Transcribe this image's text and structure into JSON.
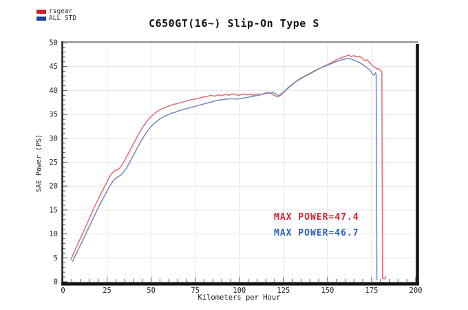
{
  "chart_data": {
    "type": "line",
    "title": "C650GT(16~) Slip-On Type S",
    "xlabel": "Kilometers per Hour",
    "ylabel": "SAE Power (PS)",
    "xlim": [
      0,
      200
    ],
    "ylim": [
      0,
      50
    ],
    "x_major_ticks": [
      0,
      25,
      50,
      75,
      100,
      125,
      150,
      175,
      200
    ],
    "y_major_ticks": [
      0,
      5,
      10,
      15,
      20,
      25,
      30,
      35,
      40,
      45,
      50
    ],
    "x_minor_step": 5,
    "y_minor_step": 1,
    "grid": true,
    "grid_color": "#e4e4e4",
    "legend_position": "top-left",
    "series": [
      {
        "name": "rsgear",
        "legend_color": "#ce1f2c",
        "line_color": "#e06b76",
        "max_power": 47.4,
        "points": [
          [
            4.5,
            4.6
          ],
          [
            6,
            6.0
          ],
          [
            8,
            7.6
          ],
          [
            10,
            9.2
          ],
          [
            12,
            10.8
          ],
          [
            14,
            12.5
          ],
          [
            16,
            14.1
          ],
          [
            18,
            15.8
          ],
          [
            20,
            17.3
          ],
          [
            22,
            18.8
          ],
          [
            24,
            20.2
          ],
          [
            26,
            21.7
          ],
          [
            27.5,
            22.6
          ],
          [
            29,
            23.2
          ],
          [
            30.5,
            23.4
          ],
          [
            32,
            23.7
          ],
          [
            33.5,
            24.5
          ],
          [
            35,
            25.4
          ],
          [
            37,
            26.8
          ],
          [
            39,
            28.2
          ],
          [
            41,
            29.6
          ],
          [
            43,
            31.0
          ],
          [
            45,
            32.2
          ],
          [
            47,
            33.3
          ],
          [
            49,
            34.2
          ],
          [
            51,
            34.9
          ],
          [
            53,
            35.5
          ],
          [
            55,
            36.0
          ],
          [
            57,
            36.3
          ],
          [
            59,
            36.6
          ],
          [
            61,
            36.9
          ],
          [
            63,
            37.1
          ],
          [
            65,
            37.3
          ],
          [
            67,
            37.5
          ],
          [
            70,
            37.8
          ],
          [
            73,
            38.1
          ],
          [
            76,
            38.3
          ],
          [
            79,
            38.6
          ],
          [
            82,
            38.8
          ],
          [
            84,
            39.0
          ],
          [
            86,
            38.8
          ],
          [
            88,
            39.1
          ],
          [
            90,
            38.9
          ],
          [
            92,
            39.2
          ],
          [
            94,
            39.0
          ],
          [
            96,
            39.3
          ],
          [
            98,
            39.1
          ],
          [
            100,
            39.0
          ],
          [
            102,
            39.3
          ],
          [
            104,
            39.1
          ],
          [
            106,
            39.2
          ],
          [
            108,
            39.0
          ],
          [
            110,
            39.3
          ],
          [
            112,
            39.1
          ],
          [
            114,
            39.4
          ],
          [
            116,
            39.6
          ],
          [
            118,
            39.4
          ],
          [
            120,
            38.9
          ],
          [
            122,
            38.7
          ],
          [
            124,
            39.2
          ],
          [
            126,
            39.9
          ],
          [
            128,
            40.6
          ],
          [
            130,
            41.2
          ],
          [
            132,
            41.8
          ],
          [
            134,
            42.3
          ],
          [
            136,
            42.7
          ],
          [
            138,
            43.1
          ],
          [
            140,
            43.5
          ],
          [
            142,
            43.9
          ],
          [
            144,
            44.3
          ],
          [
            146,
            44.7
          ],
          [
            148,
            45.1
          ],
          [
            150,
            45.4
          ],
          [
            152,
            45.8
          ],
          [
            154,
            46.2
          ],
          [
            156,
            46.6
          ],
          [
            158,
            46.9
          ],
          [
            160,
            47.1
          ],
          [
            162,
            47.4
          ],
          [
            163.5,
            47.1
          ],
          [
            165,
            47.3
          ],
          [
            166.5,
            47.0
          ],
          [
            168,
            47.2
          ],
          [
            169.5,
            46.8
          ],
          [
            171,
            46.3
          ],
          [
            172.5,
            46.4
          ],
          [
            174,
            45.8
          ],
          [
            175.5,
            45.2
          ],
          [
            177,
            44.8
          ],
          [
            178,
            44.5
          ],
          [
            179,
            44.6
          ],
          [
            180,
            44.2
          ],
          [
            180.8,
            43.9
          ],
          [
            181.2,
            0.7
          ],
          [
            182.8,
            0.6
          ],
          [
            183,
            1.1
          ]
        ]
      },
      {
        "name": "ALL STD",
        "legend_color": "#1e3f9d",
        "line_color": "#7289bd",
        "max_power": 46.7,
        "points": [
          [
            5.5,
            4.3
          ],
          [
            7,
            5.5
          ],
          [
            9,
            7.0
          ],
          [
            11,
            8.5
          ],
          [
            13,
            10.1
          ],
          [
            15,
            11.6
          ],
          [
            17,
            13.2
          ],
          [
            19,
            14.7
          ],
          [
            21,
            16.2
          ],
          [
            23,
            17.6
          ],
          [
            25,
            19.0
          ],
          [
            27,
            20.3
          ],
          [
            28.5,
            21.1
          ],
          [
            30,
            21.7
          ],
          [
            31.5,
            22.0
          ],
          [
            33,
            22.4
          ],
          [
            34.5,
            23.0
          ],
          [
            36,
            23.8
          ],
          [
            38,
            25.1
          ],
          [
            40,
            26.5
          ],
          [
            42,
            27.9
          ],
          [
            44,
            29.3
          ],
          [
            46,
            30.5
          ],
          [
            48,
            31.6
          ],
          [
            50,
            32.5
          ],
          [
            52,
            33.2
          ],
          [
            54,
            33.8
          ],
          [
            56,
            34.3
          ],
          [
            58,
            34.7
          ],
          [
            60,
            35.0
          ],
          [
            62,
            35.3
          ],
          [
            64,
            35.5
          ],
          [
            66,
            35.8
          ],
          [
            69,
            36.1
          ],
          [
            72,
            36.4
          ],
          [
            75,
            36.7
          ],
          [
            78,
            37.0
          ],
          [
            81,
            37.3
          ],
          [
            84,
            37.6
          ],
          [
            87,
            37.9
          ],
          [
            90,
            38.1
          ],
          [
            93,
            38.2
          ],
          [
            96,
            38.3
          ],
          [
            99,
            38.2
          ],
          [
            102,
            38.4
          ],
          [
            105,
            38.6
          ],
          [
            108,
            38.8
          ],
          [
            111,
            39.0
          ],
          [
            114,
            39.3
          ],
          [
            117,
            39.5
          ],
          [
            119,
            39.6
          ],
          [
            121,
            39.2
          ],
          [
            122.5,
            38.9
          ],
          [
            124,
            39.4
          ],
          [
            126,
            40.0
          ],
          [
            128,
            40.7
          ],
          [
            130,
            41.3
          ],
          [
            132,
            41.9
          ],
          [
            134,
            42.4
          ],
          [
            136,
            42.8
          ],
          [
            138,
            43.2
          ],
          [
            140,
            43.6
          ],
          [
            142,
            44.0
          ],
          [
            144,
            44.4
          ],
          [
            146,
            44.7
          ],
          [
            148,
            45.0
          ],
          [
            150,
            45.3
          ],
          [
            152,
            45.6
          ],
          [
            154,
            45.9
          ],
          [
            156,
            46.2
          ],
          [
            158,
            46.4
          ],
          [
            160,
            46.6
          ],
          [
            162,
            46.7
          ],
          [
            164,
            46.5
          ],
          [
            166,
            46.2
          ],
          [
            168,
            45.9
          ],
          [
            170,
            45.4
          ],
          [
            172,
            44.9
          ],
          [
            174,
            44.3
          ],
          [
            175.5,
            43.5
          ],
          [
            176.5,
            43.2
          ],
          [
            177.2,
            43.7
          ],
          [
            177.6,
            43.4
          ],
          [
            178,
            0.4
          ]
        ]
      }
    ],
    "annotations": [
      {
        "text": "MAX POWER=47.4",
        "color": "#d4222d"
      },
      {
        "text": "MAX POWER=46.7",
        "color": "#2b5fc0"
      }
    ]
  }
}
